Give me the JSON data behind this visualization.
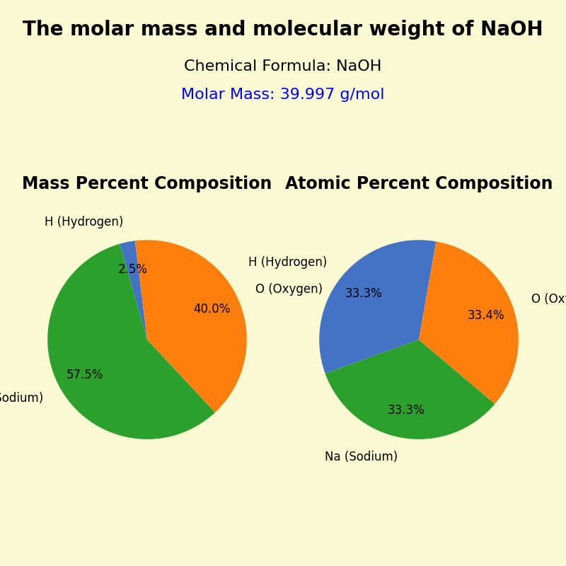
{
  "title": "The molar mass and molecular weight of NaOH",
  "chemical_formula_label": "Chemical Formula: NaOH",
  "molar_mass_label": "Molar Mass: 39.997 g/mol",
  "molar_mass_color": "blue",
  "background_color": "#FAFAD2",
  "title_fontsize": 20,
  "subtitle_fontsize": 16,
  "molar_mass_fontsize": 16,
  "left_pie_title": "Mass Percent Composition",
  "right_pie_title": "Atomic Percent Composition",
  "pie_title_fontsize": 17,
  "mass_labels": [
    "H (Hydrogen)",
    "Na (Sodium)",
    "O (Oxygen)"
  ],
  "mass_values": [
    2.5,
    57.5,
    40.0
  ],
  "mass_colors": [
    "#4472C4",
    "#2CA02C",
    "#FF7F0E"
  ],
  "mass_startangle": 97,
  "atomic_labels": [
    "H (Hydrogen)",
    "Na (Sodium)",
    "O (Oxygen)"
  ],
  "atomic_values": [
    33.3,
    33.3,
    33.4
  ],
  "atomic_colors": [
    "#4472C4",
    "#2CA02C",
    "#FF7F0E"
  ],
  "atomic_startangle": 80,
  "label_fontsize": 12,
  "autopct_fontsize": 12,
  "pct_distance_mass": 0.72,
  "pct_distance_atomic": 0.72,
  "label_distance": 1.2
}
